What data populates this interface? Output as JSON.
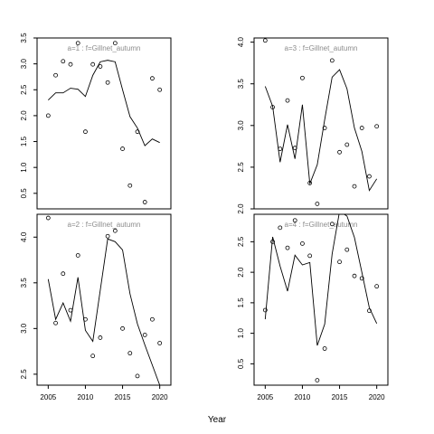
{
  "figure": {
    "xlabel": "Year"
  },
  "chart_data": [
    {
      "type": "scatter",
      "title": "a=1  :  f=Gillnet_autumn",
      "xlim": [
        2003.5,
        2021.5
      ],
      "ylim": [
        0.2,
        3.5
      ],
      "xticks": [],
      "yticks": [
        0.5,
        1.0,
        1.5,
        2.0,
        2.5,
        3.0,
        3.5
      ],
      "ytick_labels": [
        "0.5",
        "1.0",
        "1.5",
        "2.0",
        "2.5",
        "3.0",
        "3.5"
      ],
      "points": {
        "x": [
          2005,
          2006,
          2007,
          2008,
          2009,
          2010,
          2011,
          2012,
          2013,
          2014,
          2015,
          2016,
          2017,
          2018,
          2019,
          2020
        ],
        "y": [
          2.0,
          2.78,
          3.05,
          2.99,
          3.4,
          1.69,
          2.99,
          2.95,
          2.64,
          3.4,
          1.36,
          0.65,
          1.69,
          0.33,
          2.72,
          2.5
        ]
      },
      "fitted": {
        "x": [
          2005,
          2006,
          2007,
          2008,
          2009,
          2010,
          2011,
          2012,
          2013,
          2014,
          2015,
          2016,
          2017,
          2018,
          2019,
          2020
        ],
        "y": [
          2.3,
          2.44,
          2.44,
          2.53,
          2.51,
          2.37,
          2.78,
          3.04,
          3.07,
          3.04,
          2.5,
          1.98,
          1.76,
          1.42,
          1.55,
          1.48
        ]
      }
    },
    {
      "type": "scatter",
      "title": "a=3  :  f=Gillnet_autumn",
      "xlim": [
        2003.5,
        2021.5
      ],
      "ylim": [
        2.0,
        4.05
      ],
      "xticks": [],
      "yticks": [
        2.0,
        2.5,
        3.0,
        3.5,
        4.0
      ],
      "ytick_labels": [
        "2.0",
        "2.5",
        "3.0",
        "3.5",
        "4.0"
      ],
      "points": {
        "x": [
          2005,
          2006,
          2007,
          2008,
          2009,
          2010,
          2011,
          2012,
          2013,
          2014,
          2015,
          2016,
          2017,
          2018,
          2019,
          2020
        ],
        "y": [
          4.02,
          3.22,
          2.72,
          3.3,
          2.73,
          3.57,
          2.31,
          2.06,
          2.97,
          3.78,
          2.68,
          2.77,
          2.27,
          2.97,
          2.39,
          2.99
        ]
      },
      "fitted": {
        "x": [
          2005,
          2006,
          2007,
          2008,
          2009,
          2010,
          2011,
          2012,
          2013,
          2014,
          2015,
          2016,
          2017,
          2018,
          2019,
          2020
        ],
        "y": [
          3.47,
          3.23,
          2.56,
          3.01,
          2.6,
          3.25,
          2.3,
          2.53,
          3.07,
          3.58,
          3.67,
          3.44,
          2.97,
          2.69,
          2.22,
          2.36
        ]
      }
    },
    {
      "type": "scatter",
      "title": "a=2  :  f=Gillnet_autumn",
      "xlim": [
        2003.5,
        2021.5
      ],
      "ylim": [
        2.38,
        4.25
      ],
      "xticks": [
        2005,
        2010,
        2015,
        2020
      ],
      "xtick_labels": [
        "2005",
        "2010",
        "2015",
        "2020"
      ],
      "yticks": [
        2.5,
        3.0,
        3.5,
        4.0
      ],
      "ytick_labels": [
        "2.5",
        "3.0",
        "3.5",
        "4.0"
      ],
      "points": {
        "x": [
          2005,
          2006,
          2007,
          2008,
          2009,
          2010,
          2011,
          2012,
          2013,
          2014,
          2015,
          2016,
          2017,
          2018,
          2019,
          2020
        ],
        "y": [
          4.21,
          3.06,
          3.6,
          3.2,
          3.8,
          3.1,
          2.7,
          2.9,
          4.01,
          4.07,
          3.0,
          2.73,
          2.48,
          2.93,
          3.1,
          2.84
        ]
      },
      "fitted": {
        "x": [
          2005,
          2006,
          2007,
          2008,
          2009,
          2010,
          2011,
          2012,
          2013,
          2014,
          2015,
          2016,
          2017,
          2018,
          2019,
          2020
        ],
        "y": [
          3.54,
          3.1,
          3.28,
          3.08,
          3.56,
          2.98,
          2.86,
          3.42,
          3.98,
          3.95,
          3.86,
          3.38,
          3.05,
          2.82,
          2.6,
          2.38
        ]
      }
    },
    {
      "type": "scatter",
      "title": "a=4  :  f=Gillnet_autumn",
      "xlim": [
        2003.5,
        2021.5
      ],
      "ylim": [
        0.15,
        2.95
      ],
      "xticks": [
        2005,
        2010,
        2015,
        2020
      ],
      "xtick_labels": [
        "2005",
        "2010",
        "2015",
        "2020"
      ],
      "yticks": [
        0.5,
        1.0,
        1.5,
        2.0,
        2.5
      ],
      "ytick_labels": [
        "0.5",
        "1.0",
        "1.5",
        "2.0",
        "2.5"
      ],
      "points": {
        "x": [
          2005,
          2006,
          2007,
          2008,
          2009,
          2010,
          2011,
          2012,
          2013,
          2014,
          2015,
          2016,
          2017,
          2018,
          2019,
          2020
        ],
        "y": [
          1.38,
          2.5,
          2.73,
          2.4,
          2.85,
          2.47,
          2.27,
          0.23,
          0.75,
          2.79,
          2.17,
          2.37,
          1.94,
          1.9,
          1.37,
          1.77
        ]
      },
      "fitted": {
        "x": [
          2005,
          2006,
          2007,
          2008,
          2009,
          2010,
          2011,
          2012,
          2013,
          2014,
          2015,
          2016,
          2017,
          2018,
          2019,
          2020
        ],
        "y": [
          1.23,
          2.58,
          2.1,
          1.69,
          2.28,
          2.12,
          2.16,
          0.8,
          1.15,
          2.3,
          3.0,
          2.92,
          2.57,
          2.0,
          1.42,
          1.16
        ]
      }
    }
  ]
}
